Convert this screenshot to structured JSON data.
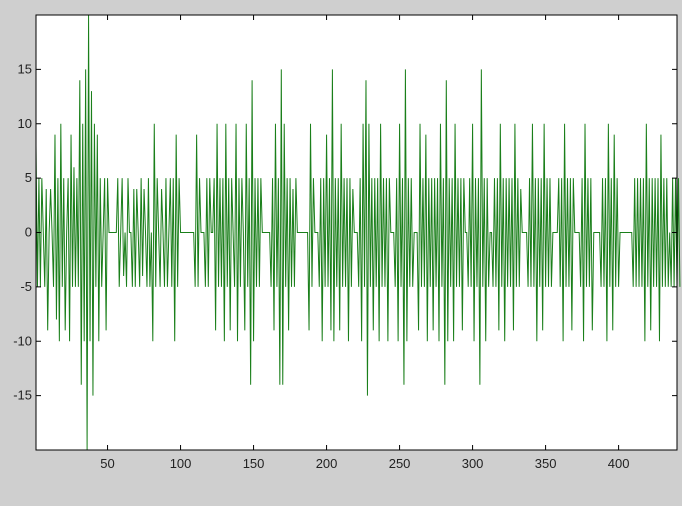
{
  "figure": {
    "background": "#cfcfcf",
    "axes_background": "#ffffff",
    "line_color": "#1a7f1a"
  },
  "chart_data": {
    "type": "line",
    "title": "",
    "xlabel": "",
    "ylabel": "",
    "xlim": [
      1,
      440
    ],
    "ylim": [
      -20,
      20
    ],
    "x_ticks": [
      50,
      100,
      150,
      200,
      250,
      300,
      350,
      400
    ],
    "y_ticks": [
      -15,
      -10,
      -5,
      0,
      5,
      10,
      15
    ],
    "grid": false,
    "legend": "none",
    "series": [
      {
        "color": "#1a7f1a",
        "x_start": 1,
        "x_step": 1,
        "values": [
          8,
          -5,
          5,
          -5,
          5,
          0,
          -5,
          4,
          -9,
          0,
          4,
          0,
          -5,
          9,
          -8,
          5,
          -10,
          10,
          -5,
          5,
          -9,
          0,
          5,
          -10,
          9,
          -5,
          6,
          -5,
          5,
          -5,
          14,
          -14,
          10,
          -10,
          15,
          -20,
          20,
          -10,
          13,
          -15,
          10,
          -5,
          9,
          -10,
          5,
          -5,
          0,
          5,
          -9,
          5,
          0,
          0,
          0,
          0,
          0,
          0,
          5,
          -5,
          0,
          5,
          -4,
          0,
          -5,
          5,
          0,
          0,
          -5,
          4,
          -5,
          4,
          0,
          -5,
          5,
          -4,
          4,
          0,
          -5,
          5,
          -5,
          0,
          -10,
          10,
          -5,
          5,
          0,
          -5,
          4,
          0,
          -5,
          5,
          -5,
          0,
          5,
          -5,
          5,
          -10,
          9,
          -5,
          5,
          0,
          0,
          0,
          0,
          0,
          0,
          0,
          0,
          0,
          0,
          -5,
          9,
          -5,
          5,
          0,
          0,
          0,
          -5,
          5,
          -5,
          5,
          0,
          0,
          5,
          -9,
          10,
          -5,
          5,
          -5,
          5,
          -10,
          10,
          -5,
          5,
          -9,
          5,
          0,
          -5,
          10,
          -10,
          5,
          -5,
          5,
          0,
          -9,
          10,
          -5,
          5,
          -14,
          14,
          -10,
          5,
          -5,
          5,
          -5,
          5,
          0,
          0,
          0,
          0,
          0,
          0,
          -5,
          5,
          -9,
          10,
          -5,
          5,
          -14,
          15,
          -14,
          10,
          -5,
          5,
          -9,
          5,
          -5,
          4,
          -5,
          5,
          0,
          0,
          0,
          0,
          0,
          0,
          0,
          0,
          -9,
          10,
          -5,
          5,
          0,
          0,
          0,
          -5,
          5,
          -10,
          5,
          -5,
          9,
          -5,
          5,
          -9,
          15,
          -10,
          5,
          -5,
          5,
          -9,
          10,
          -5,
          5,
          -5,
          5,
          -10,
          5,
          -5,
          4,
          0,
          0,
          0,
          -5,
          5,
          -10,
          10,
          -5,
          14,
          -15,
          10,
          -5,
          5,
          -9,
          5,
          -5,
          5,
          -10,
          10,
          -5,
          5,
          -5,
          5,
          -10,
          5,
          0,
          0,
          0,
          -5,
          5,
          -10,
          10,
          -5,
          5,
          -14,
          15,
          -10,
          5,
          -5,
          5,
          -5,
          0,
          0,
          0,
          -9,
          10,
          -5,
          5,
          -5,
          9,
          -10,
          5,
          -5,
          5,
          -9,
          5,
          -5,
          5,
          -10,
          10,
          -5,
          5,
          -14,
          14,
          -10,
          5,
          -5,
          5,
          -10,
          10,
          -5,
          5,
          -5,
          5,
          -9,
          5,
          0,
          0,
          -5,
          5,
          -5,
          10,
          -10,
          5,
          -5,
          5,
          -14,
          15,
          -5,
          5,
          -10,
          5,
          -5,
          0,
          0,
          -5,
          5,
          -5,
          5,
          -9,
          10,
          -5,
          5,
          -10,
          5,
          -5,
          5,
          -5,
          5,
          -9,
          10,
          -5,
          5,
          -5,
          4,
          0,
          0,
          0,
          0,
          -5,
          5,
          -5,
          10,
          -5,
          5,
          -10,
          5,
          -5,
          5,
          -9,
          10,
          -5,
          5,
          -5,
          5,
          -5,
          0,
          0,
          0,
          0,
          5,
          -5,
          5,
          -10,
          10,
          -5,
          5,
          -5,
          5,
          -9,
          5,
          0,
          0,
          0,
          0,
          -5,
          5,
          -10,
          10,
          -5,
          5,
          -5,
          5,
          -9,
          0,
          0,
          0,
          0,
          0,
          -5,
          5,
          -5,
          5,
          -10,
          10,
          -5,
          5,
          -9,
          9,
          -5,
          5,
          -5,
          0,
          0,
          0,
          0,
          0,
          0,
          0,
          0,
          0,
          -5,
          5,
          -5,
          5,
          -5,
          5,
          -5,
          5,
          -10,
          10,
          -5,
          5,
          -9,
          5,
          -5,
          5,
          -5,
          5,
          -10,
          9,
          -5,
          5,
          -5,
          5,
          -5,
          0,
          -5,
          5,
          -5,
          5,
          -5,
          5,
          -5
        ]
      }
    ]
  }
}
